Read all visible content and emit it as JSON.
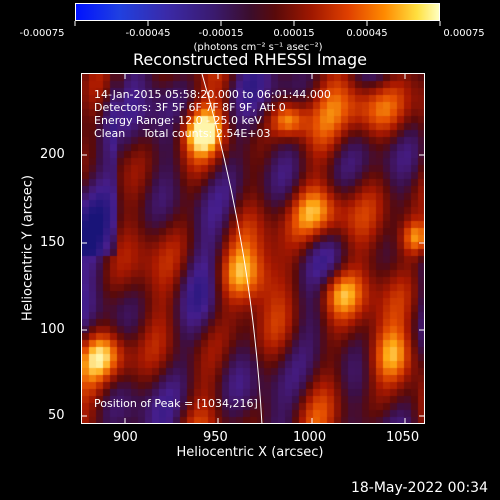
{
  "colorbar": {
    "ticks": [
      "-0.00075",
      "-0.00045",
      "-0.00015",
      "0.00015",
      "0.00045",
      "0.00075"
    ],
    "unit": "(photons cm⁻² s⁻¹ asec⁻²)"
  },
  "title": "Reconstructed RHESSI Image",
  "info": {
    "time": "14-Jan-2015 05:58:20.000 to 06:01:44.000",
    "detectors": "Detectors: 3F 5F 6F 7F 8F 9F, Att 0",
    "energy": "Energy Range: 12.0 - 25.0 keV",
    "clean": "Clean     Total counts: 2.54E+03"
  },
  "peak": "Position of Peak = [1034,216]",
  "axes": {
    "ylabel": "Heliocentric Y (arcsec)",
    "xlabel": "Heliocentric X (arcsec)",
    "yticks": [
      "50",
      "100",
      "150",
      "200"
    ],
    "xticks": [
      "900",
      "950",
      "1000",
      "1050"
    ]
  },
  "timestamp": "18-May-2022 00:34"
}
